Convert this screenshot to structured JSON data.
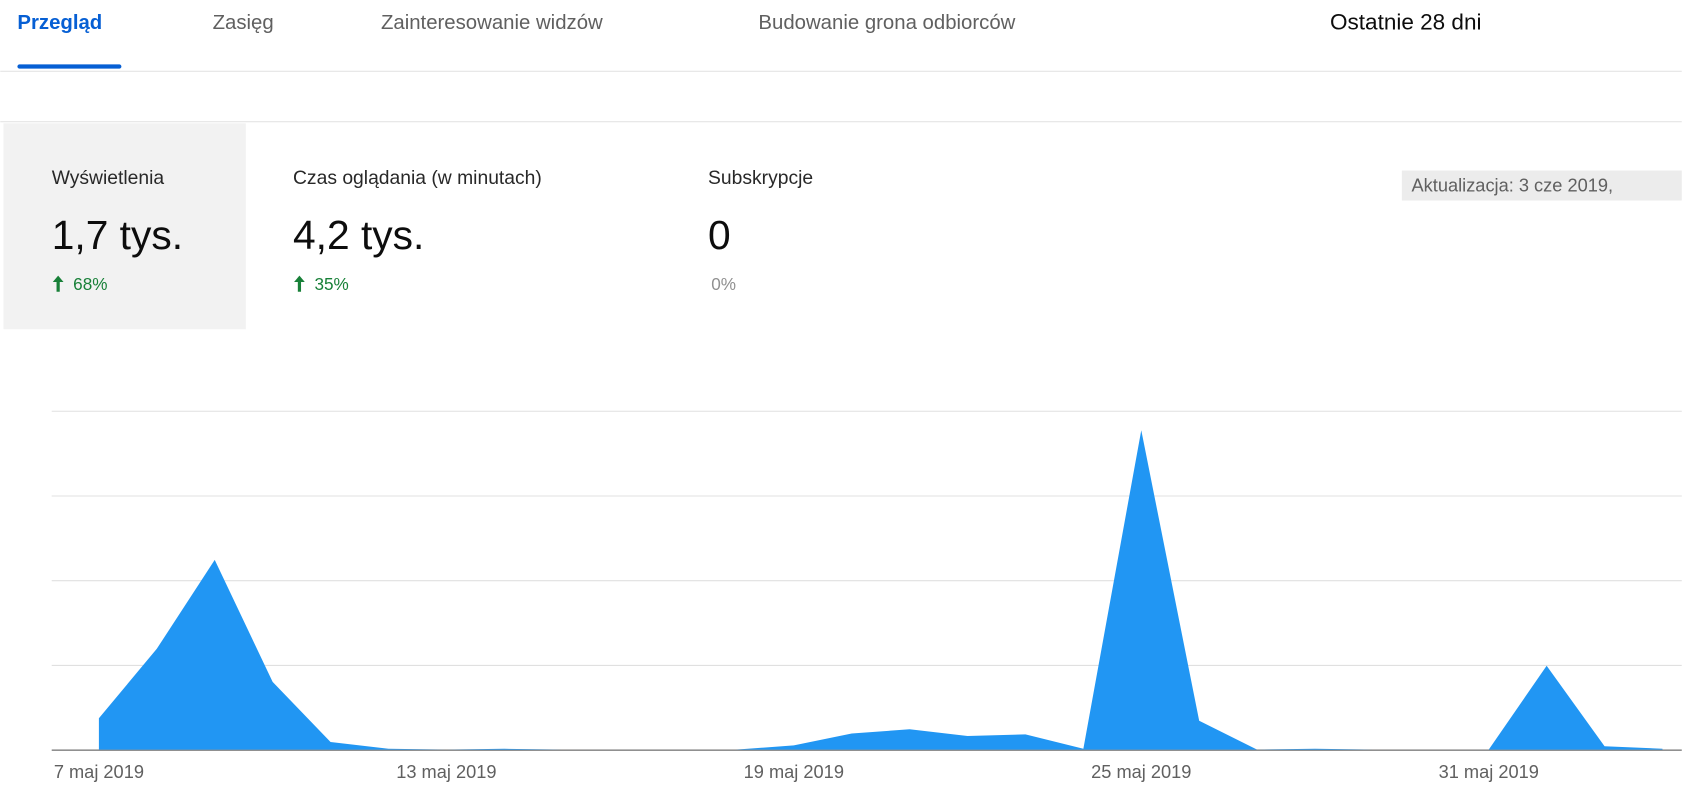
{
  "tabs": [
    "Przegląd",
    "Zasięg",
    "Zainteresowanie widzów",
    "Budowanie grona odbiorców"
  ],
  "period": "Ostatnie 28 dni",
  "metrics": [
    {
      "label": "Wyświetlenia",
      "value": "1,7 tys.",
      "change": "68%",
      "color": "#188038"
    },
    {
      "label": "Czas oglądania (w minutach)",
      "value": "4,2 tys.",
      "change": "35%",
      "color": "#188038"
    },
    {
      "label": "Subskrypcje",
      "value": "0",
      "change": "0%",
      "color": "#909090"
    }
  ],
  "update": "Aktualizacja: 3 cze 2019,",
  "chart_data": {
    "type": "area",
    "color": "#2196f3",
    "categories": [
      "7 maj 2019",
      null,
      null,
      null,
      null,
      null,
      "13 maj 2019",
      null,
      null,
      null,
      null,
      null,
      "19 maj 2019",
      null,
      null,
      null,
      null,
      null,
      "25 maj 2019",
      null,
      null,
      null,
      null,
      null,
      "31 maj 2019",
      null,
      null,
      null
    ],
    "values": [
      0.37,
      1.19,
      2.24,
      0.8,
      0.09,
      0.01,
      0,
      0.01,
      0,
      0,
      0,
      0,
      0.05,
      0.19,
      0.24,
      0.16,
      0.18,
      0.01,
      3.77,
      0.34,
      0,
      0.01,
      0,
      0,
      0,
      0.99,
      0.04,
      0.01
    ],
    "ylim": [
      0,
      4
    ],
    "yticks": [
      0,
      1,
      2,
      3,
      4
    ],
    "grid": true
  }
}
